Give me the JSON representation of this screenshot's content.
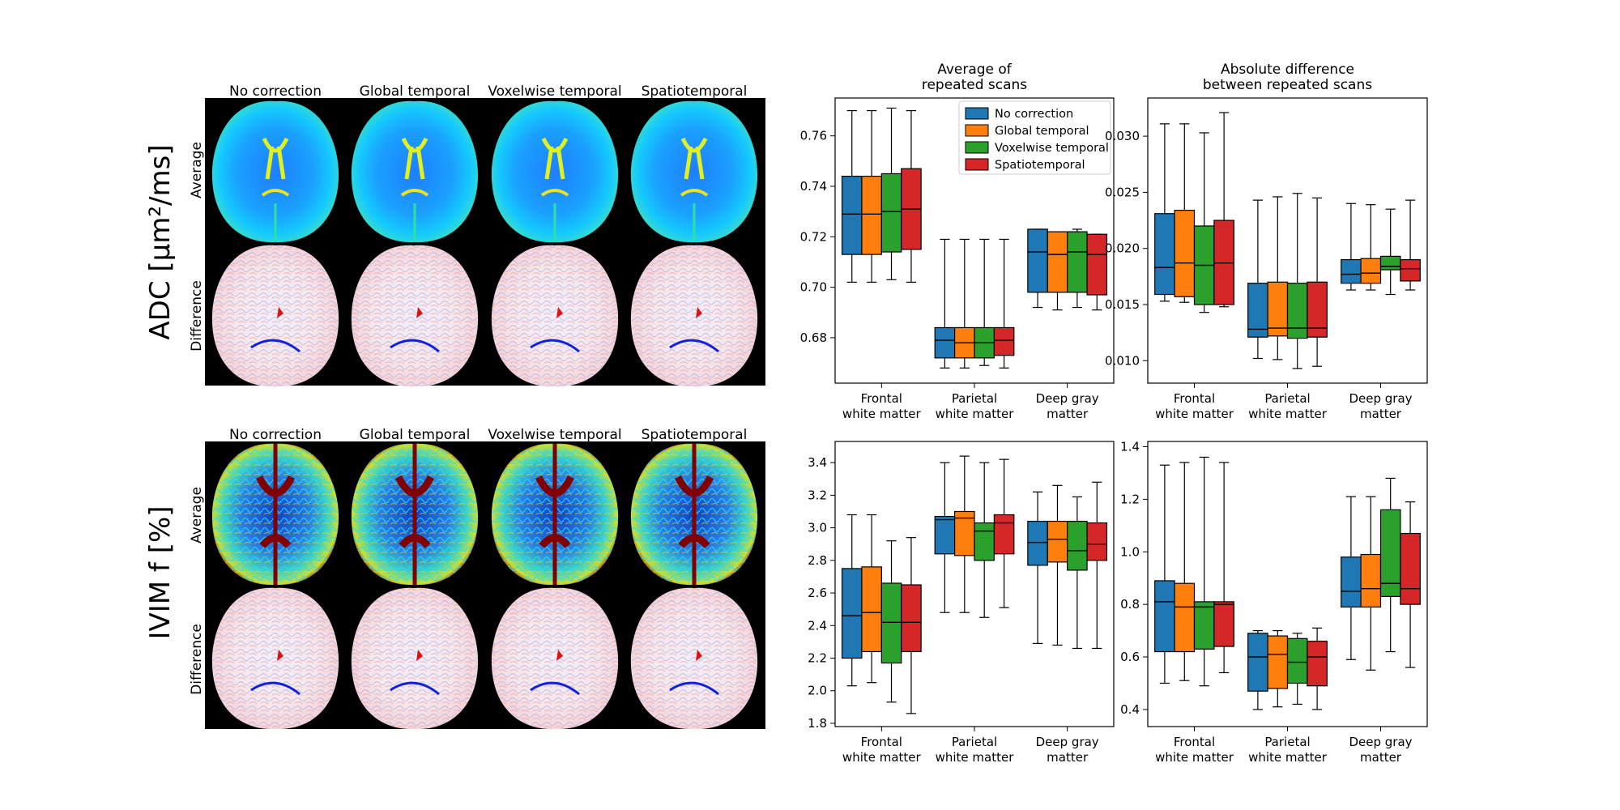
{
  "row_titles": {
    "adc": "ADC [µm²/ms]",
    "ivim": "IVIM f [%]"
  },
  "sub_labels": {
    "average": "Average",
    "difference": "Difference"
  },
  "methods": [
    "No correction",
    "Global temporal",
    "Voxelwise temporal",
    "Spatiotemporal"
  ],
  "colors": {
    "No correction": "#1f77b4",
    "Global temporal": "#ff7f0e",
    "Voxelwise temporal": "#2ca02c",
    "Spatiotemporal": "#d62728"
  },
  "chart_data": [
    {
      "id": "adc_avg",
      "type": "box",
      "title": "Average of\nrepeated scans",
      "categories": [
        "Frontal\nwhite matter",
        "Parietal\nwhite matter",
        "Deep gray\nmatter"
      ],
      "ylim": [
        0.662,
        0.775
      ],
      "yticks": [
        "0.68",
        "0.70",
        "0.72",
        "0.74",
        "0.76"
      ],
      "legend": {
        "position": "top-right",
        "labels": [
          "No correction",
          "Global temporal",
          "Voxelwise temporal",
          "Spatiotemporal"
        ]
      },
      "series": [
        {
          "name": "No correction",
          "boxes": [
            [
              0.702,
              0.713,
              0.729,
              0.744,
              0.77
            ],
            [
              0.668,
              0.672,
              0.679,
              0.684,
              0.719
            ],
            [
              0.692,
              0.698,
              0.714,
              0.723,
              0.723
            ]
          ]
        },
        {
          "name": "Global temporal",
          "boxes": [
            [
              0.702,
              0.713,
              0.729,
              0.744,
              0.77
            ],
            [
              0.668,
              0.672,
              0.678,
              0.684,
              0.719
            ],
            [
              0.691,
              0.698,
              0.713,
              0.722,
              0.722
            ]
          ]
        },
        {
          "name": "Voxelwise temporal",
          "boxes": [
            [
              0.703,
              0.714,
              0.73,
              0.745,
              0.771
            ],
            [
              0.669,
              0.672,
              0.678,
              0.684,
              0.719
            ],
            [
              0.692,
              0.698,
              0.714,
              0.722,
              0.723
            ]
          ]
        },
        {
          "name": "Spatiotemporal",
          "boxes": [
            [
              0.702,
              0.715,
              0.731,
              0.747,
              0.77
            ],
            [
              0.668,
              0.673,
              0.679,
              0.684,
              0.719
            ],
            [
              0.691,
              0.697,
              0.713,
              0.721,
              0.721
            ]
          ]
        }
      ]
    },
    {
      "id": "adc_diff",
      "type": "box",
      "title": "Absolute difference\nbetween repeated scans",
      "categories": [
        "Frontal\nwhite matter",
        "Parietal\nwhite matter",
        "Deep gray\nmatter"
      ],
      "ylim": [
        0.008,
        0.0334
      ],
      "yticks": [
        "0.010",
        "0.015",
        "0.020",
        "0.025",
        "0.030"
      ],
      "series": [
        {
          "name": "No correction",
          "boxes": [
            [
              0.0153,
              0.0159,
              0.0183,
              0.0231,
              0.0311
            ],
            [
              0.0102,
              0.0121,
              0.0128,
              0.0169,
              0.0243
            ],
            [
              0.0163,
              0.0169,
              0.0177,
              0.019,
              0.024
            ]
          ]
        },
        {
          "name": "Global temporal",
          "boxes": [
            [
              0.0152,
              0.0157,
              0.0187,
              0.0234,
              0.0311
            ],
            [
              0.0101,
              0.0122,
              0.0129,
              0.017,
              0.0246
            ],
            [
              0.0163,
              0.0169,
              0.0178,
              0.0191,
              0.0239
            ]
          ]
        },
        {
          "name": "Voxelwise temporal",
          "boxes": [
            [
              0.0143,
              0.015,
              0.0185,
              0.022,
              0.0303
            ],
            [
              0.0093,
              0.012,
              0.0129,
              0.0169,
              0.0249
            ],
            [
              0.0159,
              0.0181,
              0.0184,
              0.0193,
              0.0235
            ]
          ]
        },
        {
          "name": "Spatiotemporal",
          "boxes": [
            [
              0.0148,
              0.015,
              0.0187,
              0.0225,
              0.0321
            ],
            [
              0.0095,
              0.0121,
              0.0129,
              0.017,
              0.0245
            ],
            [
              0.0163,
              0.0171,
              0.0182,
              0.019,
              0.0243
            ]
          ]
        }
      ]
    },
    {
      "id": "ivim_avg",
      "type": "box",
      "title": "",
      "categories": [
        "Frontal\nwhite matter",
        "Parietal\nwhite matter",
        "Deep gray\nmatter"
      ],
      "ylim": [
        1.78,
        3.53
      ],
      "yticks": [
        "1.8",
        "2.0",
        "2.2",
        "2.4",
        "2.6",
        "2.8",
        "3.0",
        "3.2",
        "3.4"
      ],
      "series": [
        {
          "name": "No correction",
          "boxes": [
            [
              2.03,
              2.2,
              2.46,
              2.75,
              3.08
            ],
            [
              2.48,
              2.84,
              3.05,
              3.07,
              3.4
            ],
            [
              2.29,
              2.77,
              2.91,
              3.04,
              3.22
            ]
          ]
        },
        {
          "name": "Global temporal",
          "boxes": [
            [
              2.05,
              2.24,
              2.48,
              2.76,
              3.08
            ],
            [
              2.48,
              2.83,
              3.06,
              3.1,
              3.44
            ],
            [
              2.28,
              2.79,
              2.93,
              3.04,
              3.26
            ]
          ]
        },
        {
          "name": "Voxelwise temporal",
          "boxes": [
            [
              1.93,
              2.17,
              2.42,
              2.66,
              2.92
            ],
            [
              2.45,
              2.8,
              2.98,
              3.03,
              3.4
            ],
            [
              2.26,
              2.74,
              2.86,
              3.04,
              3.19
            ]
          ]
        },
        {
          "name": "Spatiotemporal",
          "boxes": [
            [
              1.86,
              2.24,
              2.42,
              2.65,
              2.94
            ],
            [
              2.51,
              2.84,
              3.03,
              3.08,
              3.42
            ],
            [
              2.26,
              2.8,
              2.9,
              3.03,
              3.28
            ]
          ]
        }
      ]
    },
    {
      "id": "ivim_diff",
      "type": "box",
      "title": "",
      "categories": [
        "Frontal\nwhite matter",
        "Parietal\nwhite matter",
        "Deep gray\nmatter"
      ],
      "ylim": [
        0.335,
        1.42
      ],
      "yticks": [
        "0.4",
        "0.6",
        "0.8",
        "1.0",
        "1.2",
        "1.4"
      ],
      "series": [
        {
          "name": "No correction",
          "boxes": [
            [
              0.5,
              0.62,
              0.81,
              0.89,
              1.33
            ],
            [
              0.4,
              0.47,
              0.6,
              0.69,
              0.7
            ],
            [
              0.59,
              0.79,
              0.85,
              0.98,
              1.21
            ]
          ]
        },
        {
          "name": "Global temporal",
          "boxes": [
            [
              0.51,
              0.62,
              0.79,
              0.88,
              1.34
            ],
            [
              0.41,
              0.48,
              0.61,
              0.68,
              0.7
            ],
            [
              0.55,
              0.79,
              0.86,
              0.99,
              1.21
            ]
          ]
        },
        {
          "name": "Voxelwise temporal",
          "boxes": [
            [
              0.49,
              0.63,
              0.79,
              0.81,
              1.36
            ],
            [
              0.42,
              0.5,
              0.58,
              0.67,
              0.69
            ],
            [
              0.62,
              0.83,
              0.88,
              1.16,
              1.28
            ]
          ]
        },
        {
          "name": "Spatiotemporal",
          "boxes": [
            [
              0.54,
              0.64,
              0.8,
              0.81,
              1.34
            ],
            [
              0.4,
              0.49,
              0.6,
              0.66,
              0.71
            ],
            [
              0.56,
              0.8,
              0.86,
              1.07,
              1.19
            ]
          ]
        }
      ]
    }
  ]
}
